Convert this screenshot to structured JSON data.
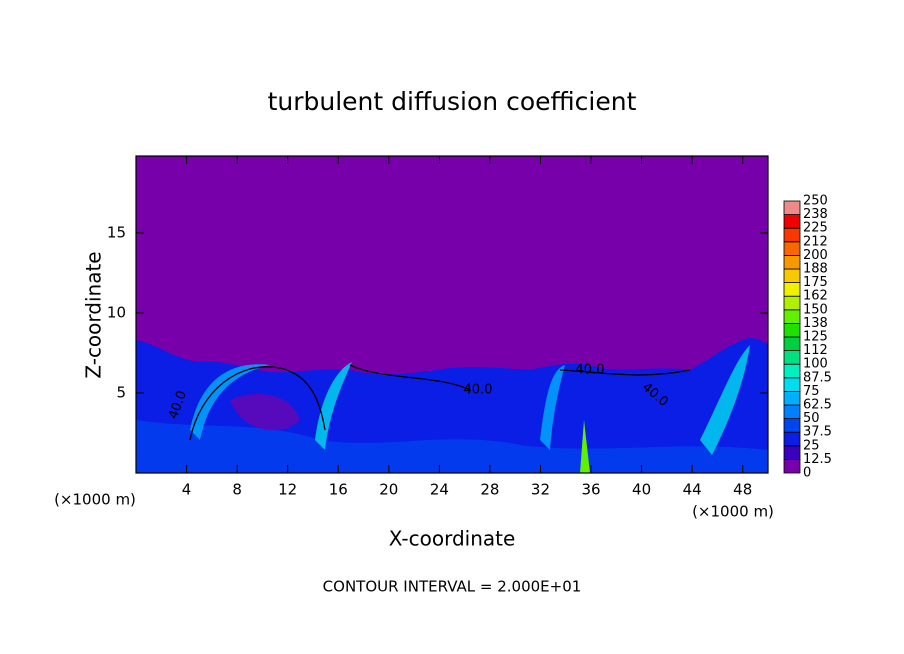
{
  "chart_data": {
    "type": "contour",
    "title": "turbulent diffusion coefficient",
    "x_label": "X-coordinate",
    "y_label": "Z-coordinate",
    "x_unit": "(×1000 m)",
    "x_unit_right": "(×1000 m)",
    "footer": "CONTOUR INTERVAL = 2.000E+01",
    "xlim": [
      0,
      50
    ],
    "ylim": [
      0,
      19.8
    ],
    "xticks": [
      4,
      8,
      12,
      16,
      20,
      24,
      28,
      32,
      36,
      40,
      44,
      48
    ],
    "yticks": [
      5,
      10,
      15
    ],
    "colorbar_levels": [
      0,
      12.5,
      25,
      37.5,
      50,
      62.5,
      75,
      87.5,
      100,
      112,
      125,
      138,
      150,
      162,
      175,
      188,
      200,
      212,
      225,
      238,
      250
    ],
    "colorbar_colors": [
      "#7800aa",
      "#3a00c0",
      "#0a1ee6",
      "#0046f0",
      "#0080ff",
      "#00b0ff",
      "#00dcf0",
      "#00f0c0",
      "#00e080",
      "#00d040",
      "#20e000",
      "#60f000",
      "#b0f000",
      "#f0f000",
      "#f8c800",
      "#f89800",
      "#f86800",
      "#f83800",
      "#f00000",
      "#f08a8a"
    ],
    "contour_labels": [
      "40.0",
      "40.0",
      "40.0",
      "40.0"
    ]
  }
}
